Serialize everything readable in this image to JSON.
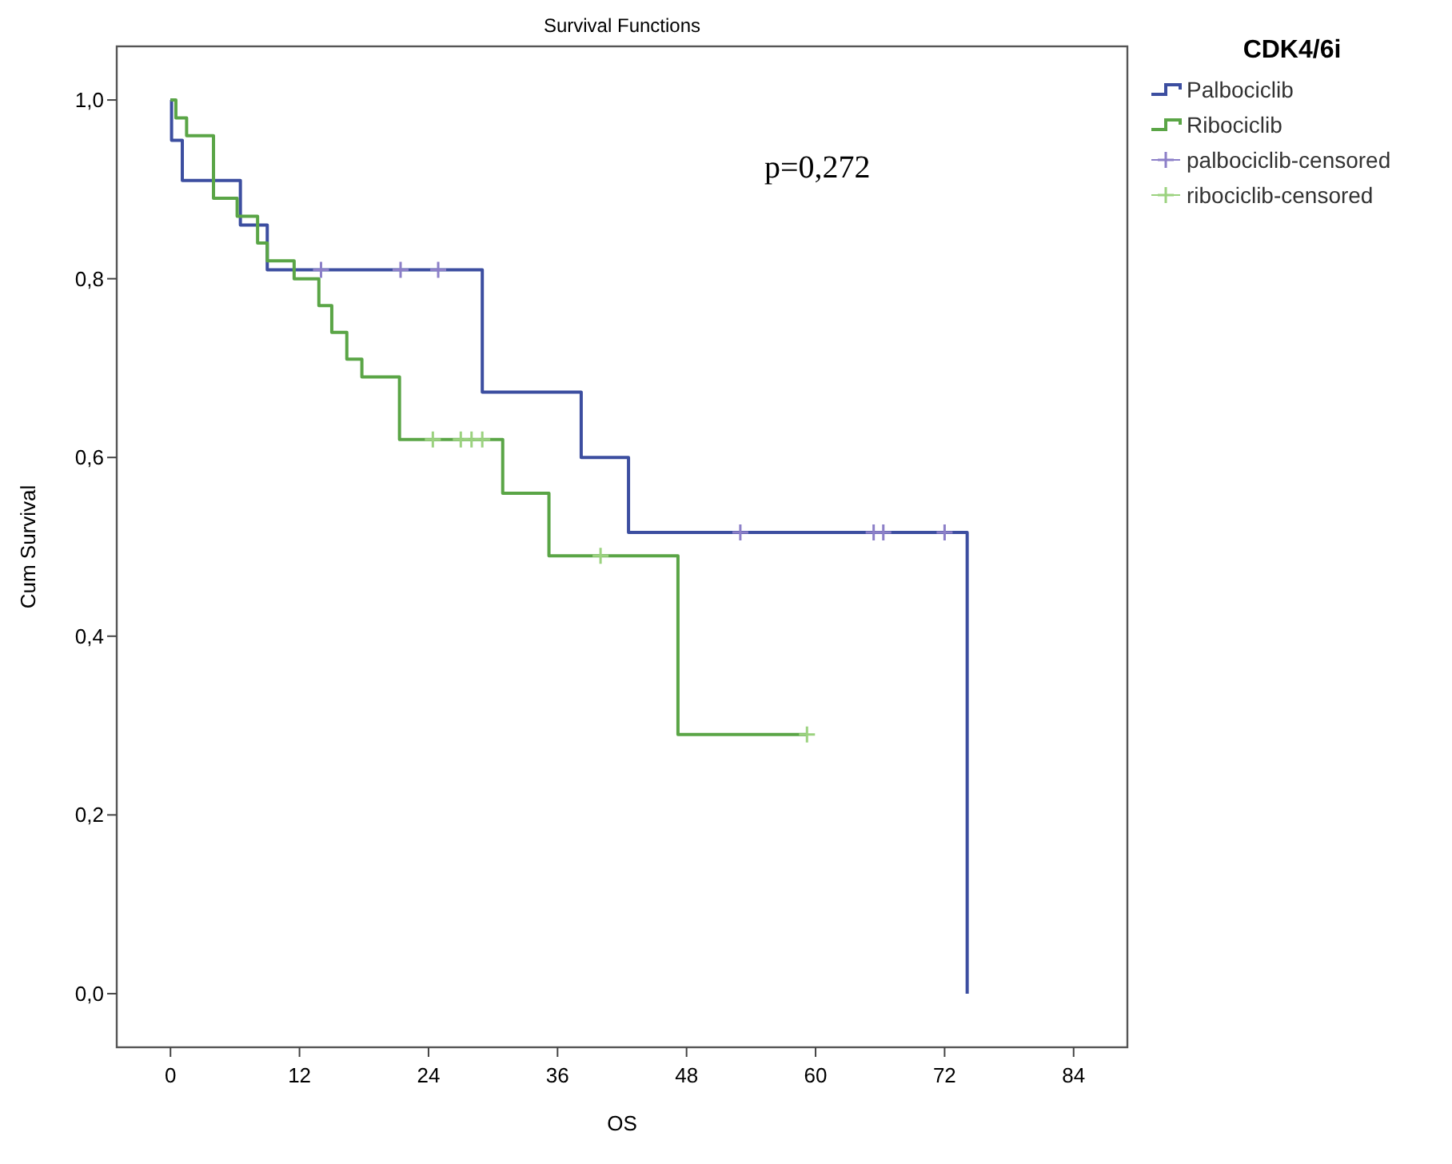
{
  "chart_data": {
    "type": "step",
    "title": "Survival Functions",
    "xlabel": "OS",
    "ylabel": "Cum Survival",
    "legend_title": "CDK4/6i",
    "annotations": [
      "p=0,272"
    ],
    "xlim": [
      -5,
      89
    ],
    "xticks": [
      0,
      12,
      24,
      36,
      48,
      60,
      72,
      84
    ],
    "ylim": [
      -0.06,
      1.06
    ],
    "yticks": [
      {
        "value": 0,
        "label": "0,0"
      },
      {
        "value": 0.2,
        "label": "0,2"
      },
      {
        "value": 0.4,
        "label": "0,4"
      },
      {
        "value": 0.6,
        "label": "0,6"
      },
      {
        "value": 0.8,
        "label": "0,8"
      },
      {
        "value": 1,
        "label": "1,0"
      }
    ],
    "grid": false,
    "legend": "top right",
    "series": [
      {
        "name": "Palbociclib",
        "color": "#3c4ea0",
        "marker": "none",
        "x": [
          0,
          0.1,
          1.1,
          6.5,
          9,
          29,
          38.2,
          42.6,
          74.1
        ],
        "values": [
          1,
          0.955,
          0.91,
          0.86,
          0.81,
          0.673,
          0.6,
          0.516,
          0
        ]
      },
      {
        "name": "Ribociclib",
        "color": "#5aa546",
        "marker": "none",
        "x": [
          0,
          0.5,
          1.5,
          4,
          6.2,
          8.1,
          9,
          11.5,
          13.8,
          15,
          16.4,
          17.8,
          21.3,
          30.9,
          35.2,
          47.2,
          59.2
        ],
        "values": [
          1,
          0.98,
          0.96,
          0.89,
          0.87,
          0.84,
          0.82,
          0.8,
          0.77,
          0.74,
          0.71,
          0.69,
          0.62,
          0.56,
          0.49,
          0.29,
          0.29
        ]
      },
      {
        "name": "palbociclib-censored",
        "type": "scatter",
        "color": "#8c7fc8",
        "marker": "cross",
        "x": [
          14,
          21.4,
          24.9,
          53,
          65.4,
          66.3,
          72
        ],
        "values": [
          0.81,
          0.81,
          0.81,
          0.516,
          0.516,
          0.516,
          0.516
        ]
      },
      {
        "name": "ribociclib-censored",
        "type": "scatter",
        "color": "#9bd27f",
        "marker": "cross",
        "x": [
          24.4,
          27,
          28,
          29,
          40,
          59.2
        ],
        "values": [
          0.62,
          0.62,
          0.62,
          0.62,
          0.49,
          0.29
        ]
      }
    ]
  }
}
